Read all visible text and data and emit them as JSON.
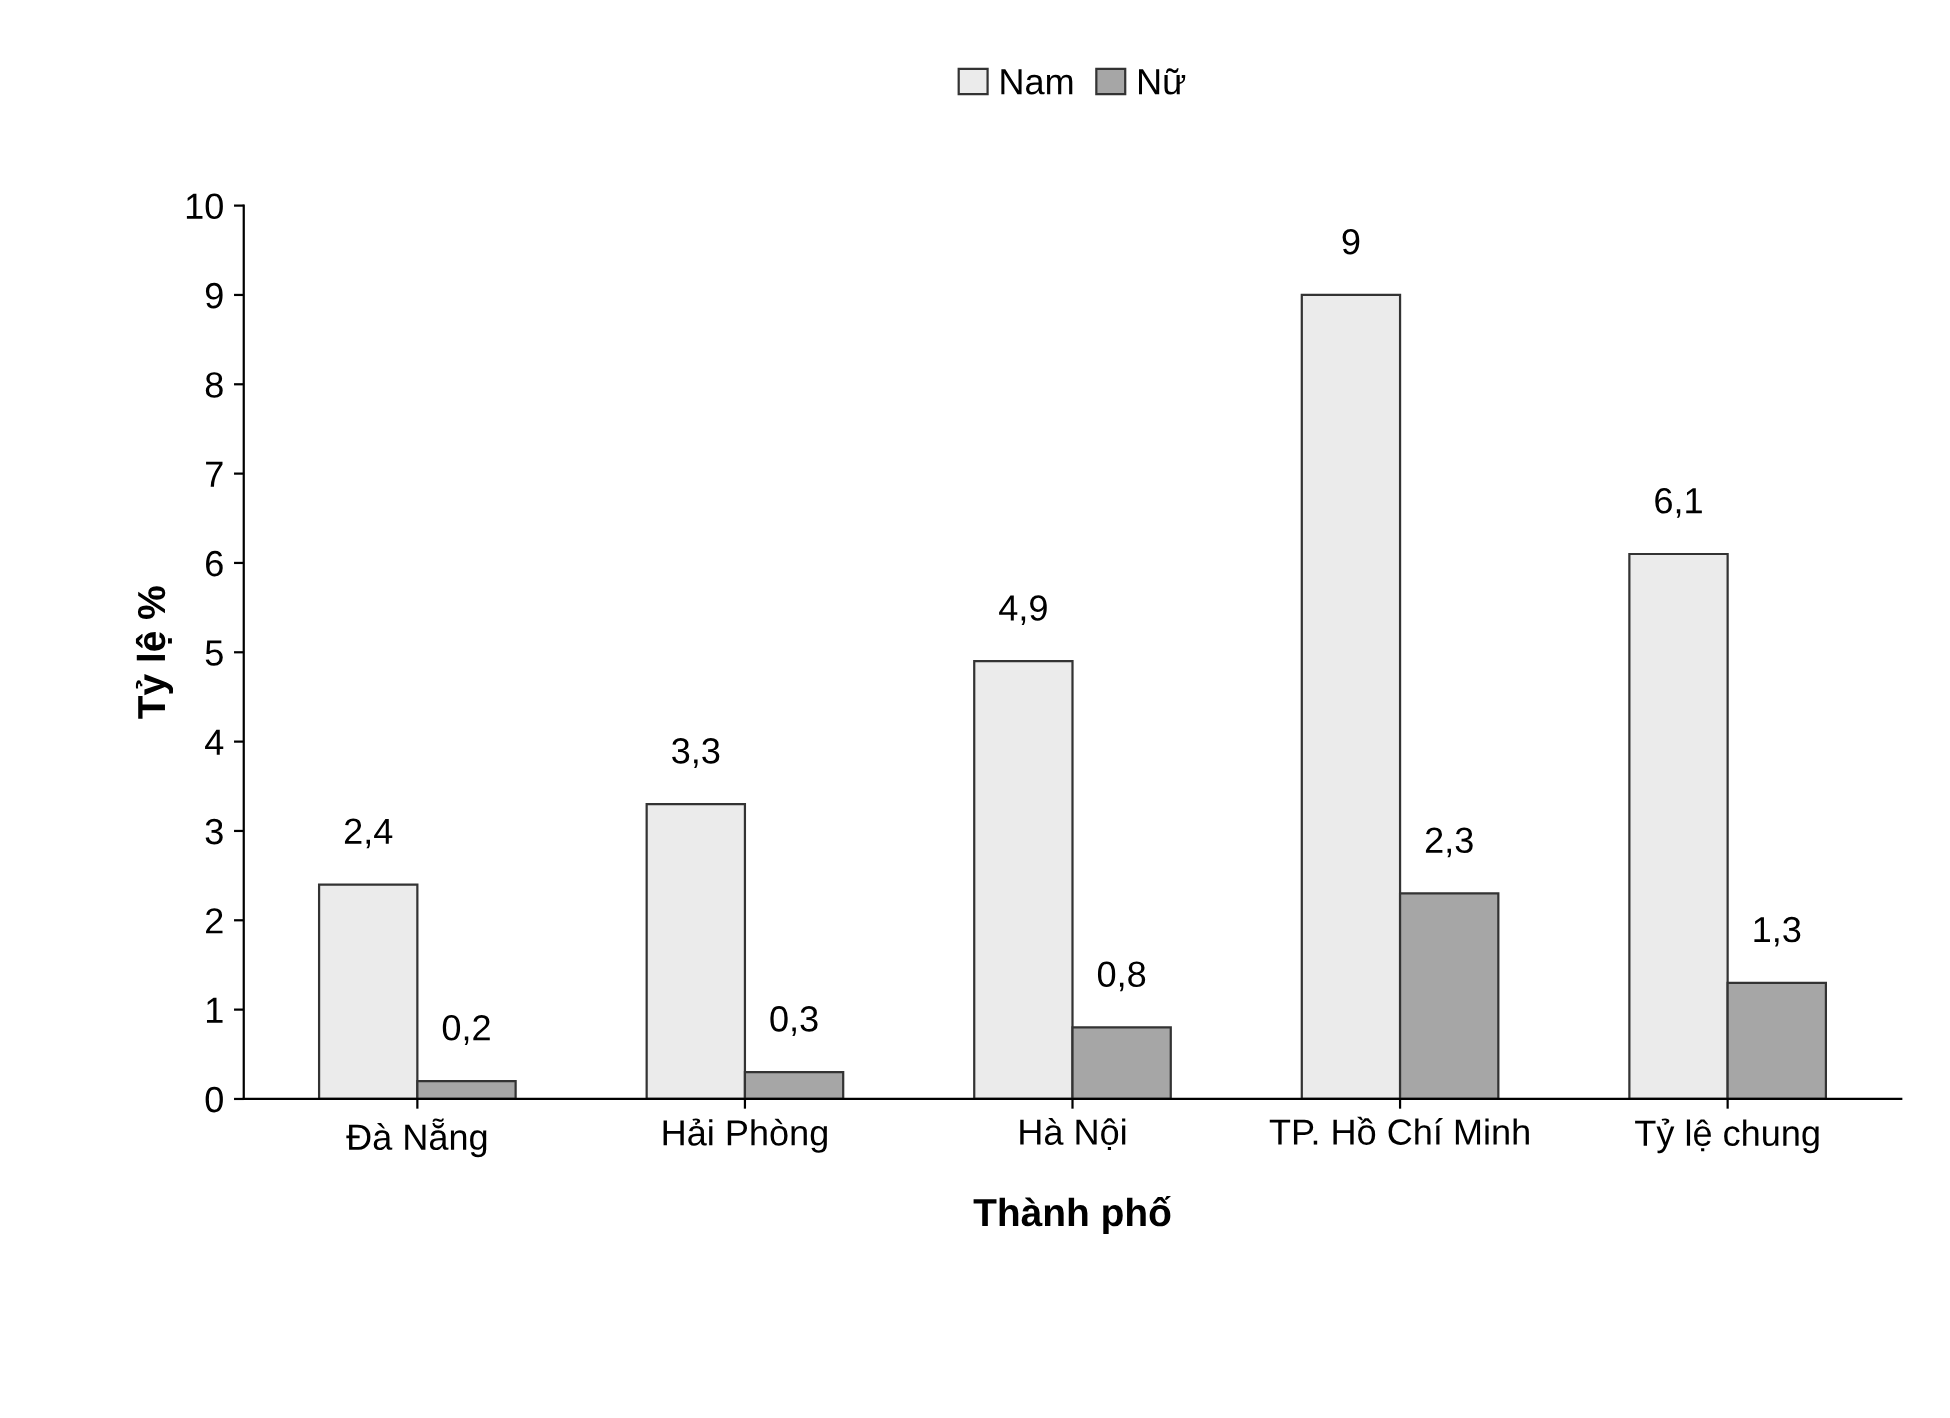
{
  "chart_data": {
    "type": "bar",
    "xlabel": "Thành phố",
    "ylabel": "Tỷ lệ %",
    "categories": [
      "Đà Nẵng",
      "Hải Phòng",
      "Hà Nội",
      "TP. Hồ Chí Minh",
      "Tỷ lệ chung"
    ],
    "series": [
      {
        "name": "Nam",
        "color": "#ebebeb",
        "values": [
          2.4,
          3.3,
          4.9,
          9,
          6.1
        ],
        "value_labels": [
          "2,4",
          "3,3",
          "4,9",
          "9",
          "6,1"
        ]
      },
      {
        "name": "Nữ",
        "color": "#a6a6a6",
        "values": [
          0.2,
          0.3,
          0.8,
          2.3,
          1.3
        ],
        "value_labels": [
          "0,2",
          "0,3",
          "0,8",
          "2,3",
          "1,3"
        ]
      }
    ],
    "ylim": [
      0,
      10
    ],
    "yticks": [
      0,
      1,
      2,
      3,
      4,
      5,
      6,
      7,
      8,
      9,
      10
    ],
    "grid": false,
    "legend": "top"
  }
}
